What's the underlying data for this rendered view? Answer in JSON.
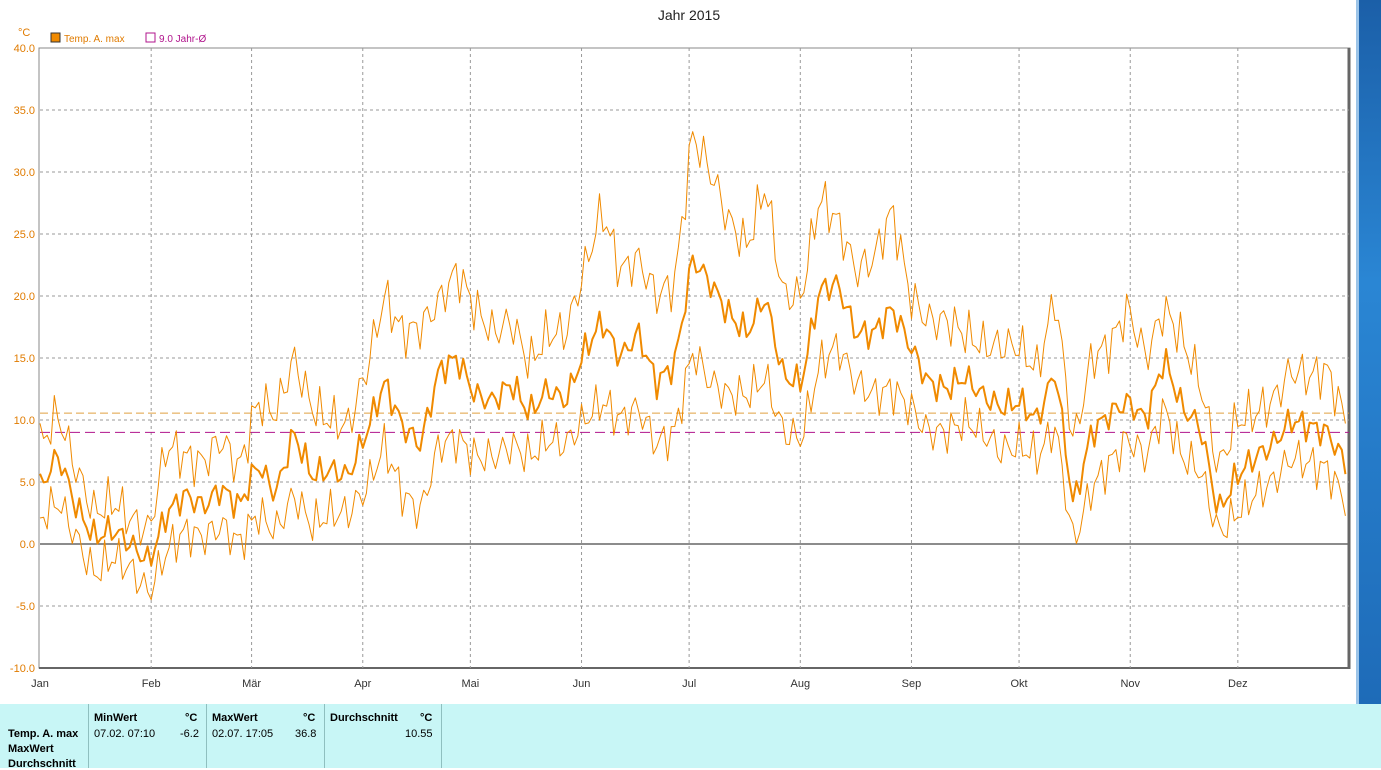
{
  "chart_data": {
    "type": "line",
    "title": "Jahr 2015",
    "yunit": "°C",
    "ylim": [
      -10,
      40
    ],
    "yticks": [
      "40.0",
      "35.0",
      "30.0",
      "25.0",
      "20.0",
      "15.0",
      "10.0",
      "5.0",
      "0.0",
      "-5.0",
      "-10.0"
    ],
    "months": [
      "Jan",
      "Feb",
      "Mär",
      "Apr",
      "Mai",
      "Jun",
      "Jul",
      "Aug",
      "Sep",
      "Okt",
      "Nov",
      "Dez"
    ],
    "grid": true,
    "legend_position": "top-left",
    "legend": [
      {
        "label": "Temp. A. max",
        "color": "#f08a00"
      },
      {
        "label": "9.0 Jahr-Ø",
        "color": "#b0148c"
      }
    ],
    "reference_lines": [
      {
        "value": 10.55,
        "color": "#e0a040"
      },
      {
        "value": 9.0,
        "color": "#b0148c"
      }
    ],
    "series": [
      {
        "name": "Temp. A. max",
        "color": "#f08a00",
        "weekly": [
          4.5,
          7.2,
          3.0,
          0.5,
          1.2,
          0.0,
          -1.5,
          2.5,
          4.0,
          3.0,
          4.5,
          3.0,
          6.5,
          4.0,
          9.0,
          5.5,
          6.0,
          5.5,
          9.0,
          13.0,
          9.5,
          8.0,
          14.0,
          15.0,
          12.0,
          11.5,
          13.0,
          10.5,
          12.5,
          11.5,
          15.5,
          18.0,
          15.0,
          17.0,
          13.0,
          14.5,
          23.0,
          21.0,
          18.5,
          17.0,
          20.0,
          13.5,
          13.0,
          20.5,
          21.0,
          17.0,
          17.0,
          19.0,
          16.0,
          13.0,
          12.5,
          13.5,
          12.0,
          11.0,
          11.5,
          10.0,
          14.0,
          3.0,
          9.0,
          10.5,
          11.5,
          10.0,
          15.0,
          11.0,
          9.5,
          2.5,
          5.5,
          7.0,
          8.0,
          10.0,
          9.5,
          9.0,
          6.5
        ]
      }
    ],
    "band_upper": {
      "weekly": [
        8.0,
        10.5,
        6.0,
        2.5,
        3.5,
        2.0,
        1.0,
        8.0,
        7.0,
        6.5,
        8.5,
        6.0,
        11.5,
        10.5,
        15.0,
        11.0,
        10.0,
        9.5,
        14.0,
        20.0,
        17.0,
        17.5,
        19.5,
        22.0,
        19.0,
        17.0,
        18.0,
        14.5,
        17.0,
        17.0,
        22.0,
        27.0,
        22.0,
        23.0,
        20.0,
        21.0,
        33.0,
        30.0,
        26.0,
        24.0,
        29.0,
        20.0,
        20.0,
        28.0,
        26.0,
        22.0,
        23.0,
        27.0,
        20.0,
        18.0,
        18.0,
        17.0,
        16.0,
        16.0,
        16.0,
        14.0,
        20.0,
        8.0,
        15.0,
        16.0,
        19.0,
        15.0,
        19.0,
        16.5,
        13.0,
        6.0,
        10.0,
        10.5,
        11.5,
        14.0,
        13.5,
        14.0,
        10.0
      ]
    },
    "band_lower": {
      "weekly": [
        2.0,
        3.5,
        0.5,
        -2.5,
        -1.0,
        -2.0,
        -4.0,
        -0.5,
        1.0,
        0.5,
        1.5,
        0.0,
        2.5,
        1.0,
        4.0,
        1.5,
        2.5,
        2.5,
        4.5,
        8.0,
        4.0,
        2.5,
        8.0,
        8.5,
        7.0,
        7.0,
        8.0,
        7.0,
        8.5,
        8.0,
        10.0,
        11.5,
        10.0,
        11.0,
        8.0,
        9.0,
        15.5,
        13.0,
        12.0,
        12.0,
        13.5,
        9.0,
        8.5,
        14.5,
        16.0,
        13.0,
        12.0,
        12.5,
        11.0,
        9.0,
        9.0,
        10.0,
        9.0,
        7.5,
        8.0,
        7.0,
        9.5,
        0.0,
        4.5,
        6.5,
        8.5,
        7.0,
        11.0,
        7.0,
        6.0,
        0.8,
        2.5,
        4.0,
        5.0,
        7.0,
        6.5,
        6.0,
        3.5
      ]
    },
    "max_point": {
      "date": "02.07.",
      "value": 36.8
    },
    "min_point": {
      "date": "07.02.",
      "value": -6.2
    }
  },
  "stats": {
    "row_labels": [
      "Temp. A. max",
      "MaxWert",
      "Durchschnitt"
    ],
    "columns": [
      {
        "header": "MinWert",
        "unit": "°C",
        "date": "07.02.  07:10",
        "value": "-6.2"
      },
      {
        "header": "MaxWert",
        "unit": "°C",
        "date": "02.07.  17:05",
        "value": "36.8"
      },
      {
        "header": "Durchschnitt",
        "unit": "°C",
        "date": "",
        "value": "10.55"
      }
    ]
  }
}
